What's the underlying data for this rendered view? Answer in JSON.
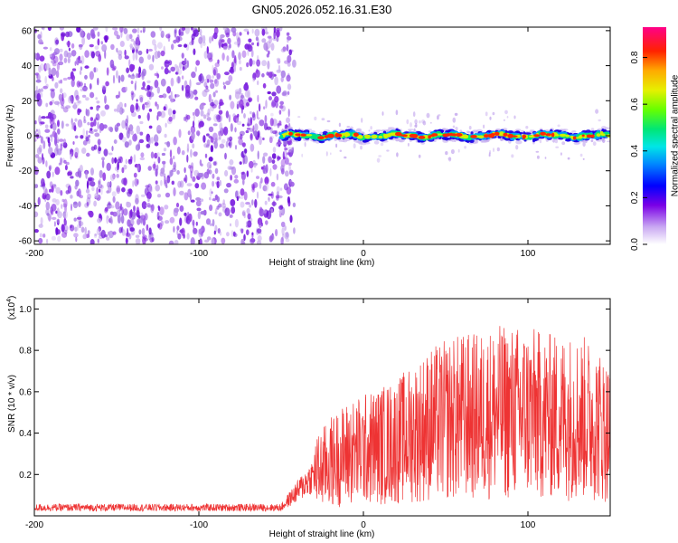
{
  "title": "GN05.2026.052.16.31.E30",
  "chart_data": [
    {
      "type": "heatmap",
      "xlabel": "Height of straight line (km)",
      "ylabel": "Frequency (Hz)",
      "xlim": [
        -200,
        150
      ],
      "ylim": [
        -62,
        62
      ],
      "x_ticks": [
        -200,
        -100,
        0,
        100
      ],
      "y_ticks": [
        -60,
        -40,
        -20,
        0,
        20,
        40,
        60
      ],
      "noise_region_x": [
        -200,
        -42
      ],
      "signal_start_x": -52,
      "signal_center_frequency": 0,
      "signal_band_frequency": [
        -5,
        5
      ],
      "colorbar": {
        "label": "Normalized spectral amplitude",
        "range": [
          0.0,
          0.93
        ],
        "ticks": [
          0.0,
          0.2,
          0.4,
          0.6,
          0.8
        ],
        "tick_labels": [
          "0.0",
          "0.2",
          "0.4",
          "0.6",
          "0.8"
        ]
      }
    },
    {
      "type": "line",
      "xlabel": "Height of straight line (km)",
      "ylabel": "SNR (10 * v/v)",
      "y_multiplier_label": "(x10",
      "y_multiplier_exp": "4",
      "y_multiplier_suffix": ")",
      "xlim": [
        -200,
        150
      ],
      "ylim": [
        0,
        1.05
      ],
      "x_ticks": [
        -200,
        -100,
        0,
        100
      ],
      "y_ticks": [
        0.2,
        0.4,
        0.6,
        0.8,
        1.0
      ],
      "y_tick_labels": [
        "0.2",
        "0.4",
        "0.6",
        "0.8",
        "1.0"
      ],
      "color": "#ee3333",
      "series": [
        {
          "x": [
            -200,
            -150,
            -100,
            -50,
            -30,
            -20,
            -10,
            0,
            10,
            20,
            30,
            40,
            50,
            60,
            70,
            80,
            90,
            100,
            110,
            120,
            130,
            140,
            150
          ],
          "values": [
            0.04,
            0.04,
            0.04,
            0.04,
            0.2,
            0.26,
            0.3,
            0.32,
            0.34,
            0.36,
            0.4,
            0.44,
            0.46,
            0.48,
            0.48,
            0.5,
            0.5,
            0.5,
            0.48,
            0.48,
            0.48,
            0.46,
            0.4
          ]
        }
      ]
    }
  ]
}
